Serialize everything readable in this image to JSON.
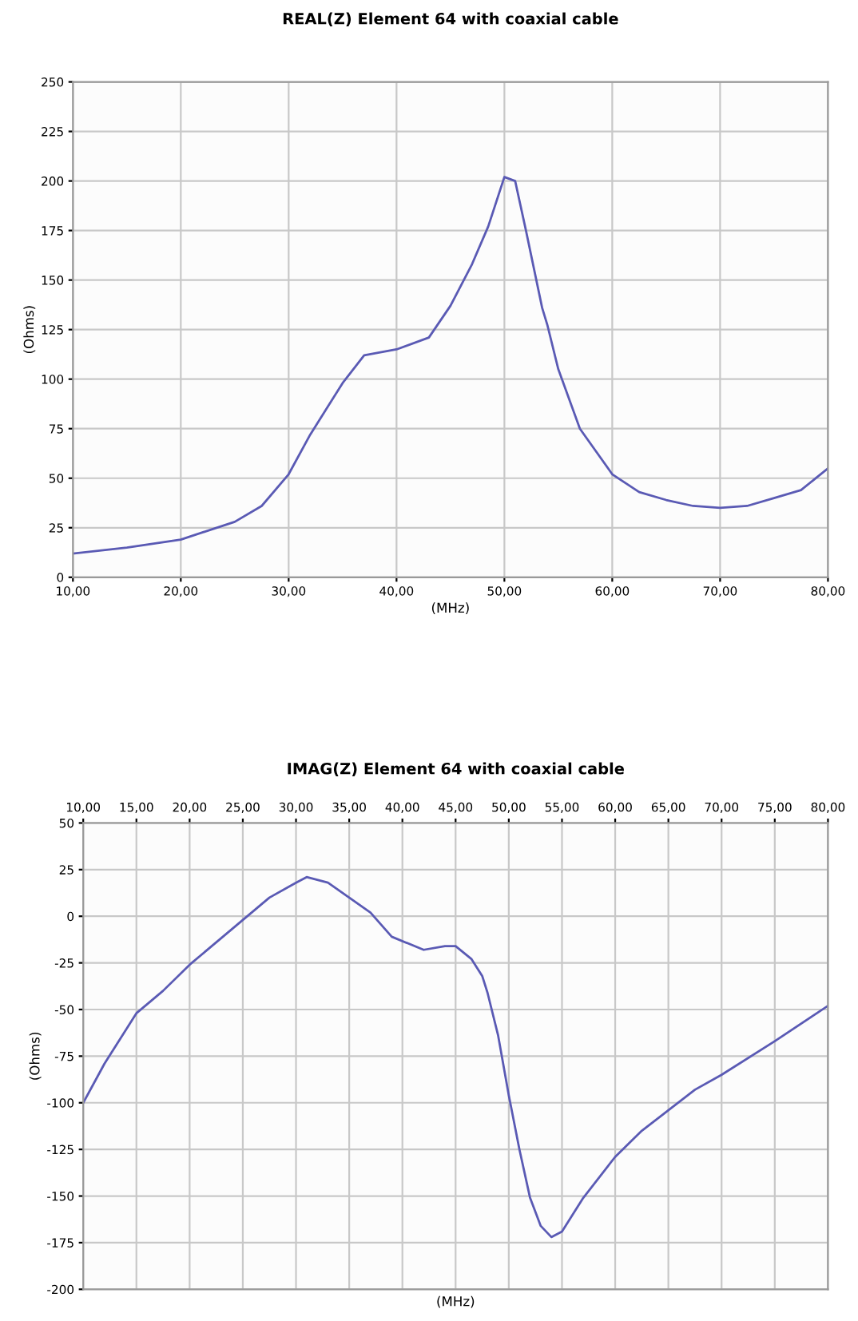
{
  "chart_data": [
    {
      "type": "line",
      "title": "REAL(Z) Element 64 with coaxial cable",
      "xlabel": "(MHz)",
      "ylabel": "(Ohms)",
      "xlim": [
        10,
        80
      ],
      "xticks": [
        {
          "value": 10,
          "label": "10,00"
        },
        {
          "value": 20,
          "label": "20,00"
        },
        {
          "value": 30,
          "label": "30,00"
        },
        {
          "value": 40,
          "label": "40,00"
        },
        {
          "value": 50,
          "label": "50,00"
        },
        {
          "value": 60,
          "label": "60,00"
        },
        {
          "value": 70,
          "label": "70,00"
        },
        {
          "value": 80,
          "label": "80,00"
        }
      ],
      "ylim": [
        0,
        250
      ],
      "yticks": [
        0,
        25,
        50,
        75,
        100,
        125,
        150,
        175,
        200,
        225,
        250
      ],
      "grid": true,
      "series": [
        {
          "color": "#5a5ab4",
          "x": [
            10,
            15,
            20,
            25,
            27.5,
            30,
            32,
            35,
            37,
            40,
            43,
            45,
            47,
            48.5,
            50,
            51,
            52,
            53.5,
            54,
            55,
            57,
            60,
            62.5,
            65,
            67.5,
            70,
            72.5,
            75,
            77.5,
            80
          ],
          "values": [
            12,
            15,
            19,
            28,
            36,
            52,
            72,
            98,
            112,
            115,
            121,
            137,
            158,
            177,
            202,
            200,
            175,
            136,
            127,
            105,
            75,
            52,
            43,
            39,
            36,
            35,
            36,
            40,
            44,
            55
          ]
        }
      ]
    },
    {
      "type": "line",
      "title": "IMAG(Z) Element 64 with coaxial cable",
      "xlabel": "(MHz)",
      "ylabel": "(Ohms)",
      "xlim": [
        10,
        80
      ],
      "xticks": [
        {
          "value": 10,
          "label": "10,00"
        },
        {
          "value": 15,
          "label": "15,00"
        },
        {
          "value": 20,
          "label": "20,00"
        },
        {
          "value": 25,
          "label": "25,00"
        },
        {
          "value": 30,
          "label": "30,00"
        },
        {
          "value": 35,
          "label": "35,00"
        },
        {
          "value": 40,
          "label": "40,00"
        },
        {
          "value": 45,
          "label": "45,00"
        },
        {
          "value": 50,
          "label": "50,00"
        },
        {
          "value": 55,
          "label": "55,00"
        },
        {
          "value": 60,
          "label": "60,00"
        },
        {
          "value": 65,
          "label": "65,00"
        },
        {
          "value": 70,
          "label": "70,00"
        },
        {
          "value": 75,
          "label": "75,00"
        },
        {
          "value": 80,
          "label": "80,00"
        }
      ],
      "ylim": [
        -200,
        50
      ],
      "yticks": [
        -200,
        -175,
        -150,
        -125,
        -100,
        -75,
        -50,
        -25,
        0,
        25,
        50
      ],
      "grid": true,
      "series": [
        {
          "color": "#5a5ab4",
          "x": [
            10,
            12,
            15,
            17.5,
            20,
            25,
            27.5,
            30,
            31,
            33,
            35,
            37,
            39,
            42,
            44,
            45,
            46.5,
            47.5,
            48,
            49,
            50,
            51,
            52,
            53,
            54,
            55,
            57,
            60,
            62.5,
            65,
            67.5,
            70,
            75,
            80
          ],
          "values": [
            -100,
            -79,
            -52,
            -40,
            -26,
            -2,
            10,
            18,
            21,
            18,
            10,
            2,
            -11,
            -18,
            -16,
            -16,
            -23,
            -32,
            -41,
            -64,
            -96,
            -125,
            -151,
            -166,
            -172,
            -169,
            -151,
            -129,
            -115,
            -104,
            -93,
            -85,
            -67,
            -48
          ]
        }
      ]
    }
  ]
}
